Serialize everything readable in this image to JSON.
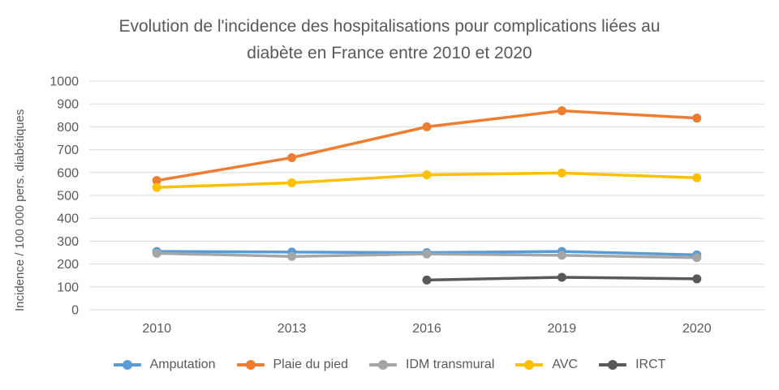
{
  "window": {
    "background": "#FFFFFF"
  },
  "chart": {
    "title_line1": "Evolution de l'incidence des hospitalisations pour complications liées au",
    "title_line2": "diabète en France entre 2010 et 2020",
    "y_axis_label": "Incidence / 100 000 pers. diabétiques"
  },
  "chart_data": {
    "type": "line",
    "title": "Evolution de l'incidence des hospitalisations pour complications liées au diabète en France entre 2010 et 2020",
    "xlabel": "",
    "ylabel": "Incidence / 100 000 pers. diabétiques",
    "categories": [
      "2010",
      "2013",
      "2016",
      "2019",
      "2020"
    ],
    "series": [
      {
        "name": "Amputation",
        "color": "#5B9BD5",
        "values": [
          255,
          252,
          250,
          255,
          240
        ]
      },
      {
        "name": "Plaie du pied",
        "color": "#ED7D31",
        "values": [
          565,
          665,
          800,
          870,
          838
        ]
      },
      {
        "name": "IDM transmural",
        "color": "#A5A5A5",
        "values": [
          247,
          233,
          244,
          238,
          228
        ]
      },
      {
        "name": "AVC",
        "color": "#FFC000",
        "values": [
          535,
          555,
          590,
          598,
          577
        ]
      },
      {
        "name": "IRCT",
        "color": "#595959",
        "values": [
          null,
          null,
          130,
          142,
          135
        ]
      }
    ],
    "ylim": [
      0,
      1000
    ],
    "ytick_step": 100,
    "ytick_labels": [
      "0",
      "100",
      "200",
      "300",
      "400",
      "500",
      "600",
      "700",
      "800",
      "900",
      "1000"
    ],
    "grid": "horizontal",
    "gridline_color": "#D9D9D9",
    "text_color": "#595959",
    "legend_position": "bottom"
  }
}
